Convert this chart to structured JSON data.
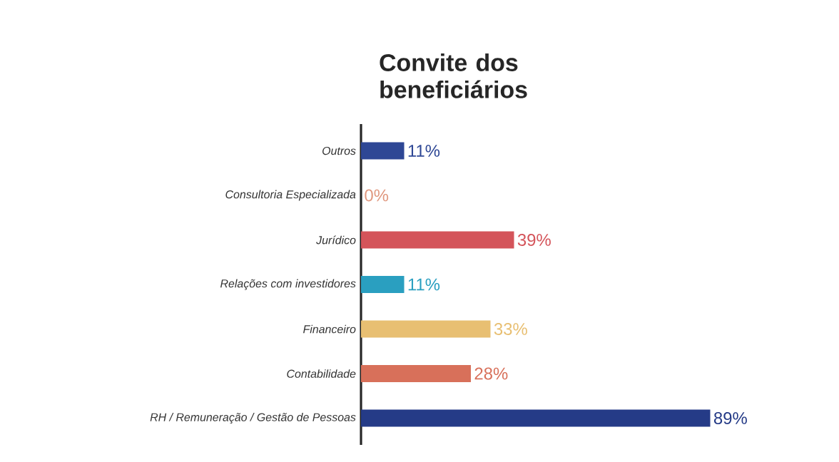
{
  "chart_data": {
    "type": "bar",
    "orientation": "horizontal",
    "title": "Convite dos beneficiários",
    "categories": [
      "Outros",
      "Consultoria Especializada",
      "Jurídico",
      "Relações com investidores",
      "Financeiro",
      "Contabilidade",
      "RH / Remuneração / Gestão de Pessoas"
    ],
    "values": [
      11,
      0,
      39,
      11,
      33,
      28,
      89
    ],
    "value_labels": [
      "11%",
      "0%",
      "39%",
      "11%",
      "33%",
      "28%",
      "89%"
    ],
    "colors": [
      "#2e4795",
      "#e0987f",
      "#d4545a",
      "#2a9fc0",
      "#e8bf72",
      "#d8705a",
      "#253b87"
    ]
  }
}
